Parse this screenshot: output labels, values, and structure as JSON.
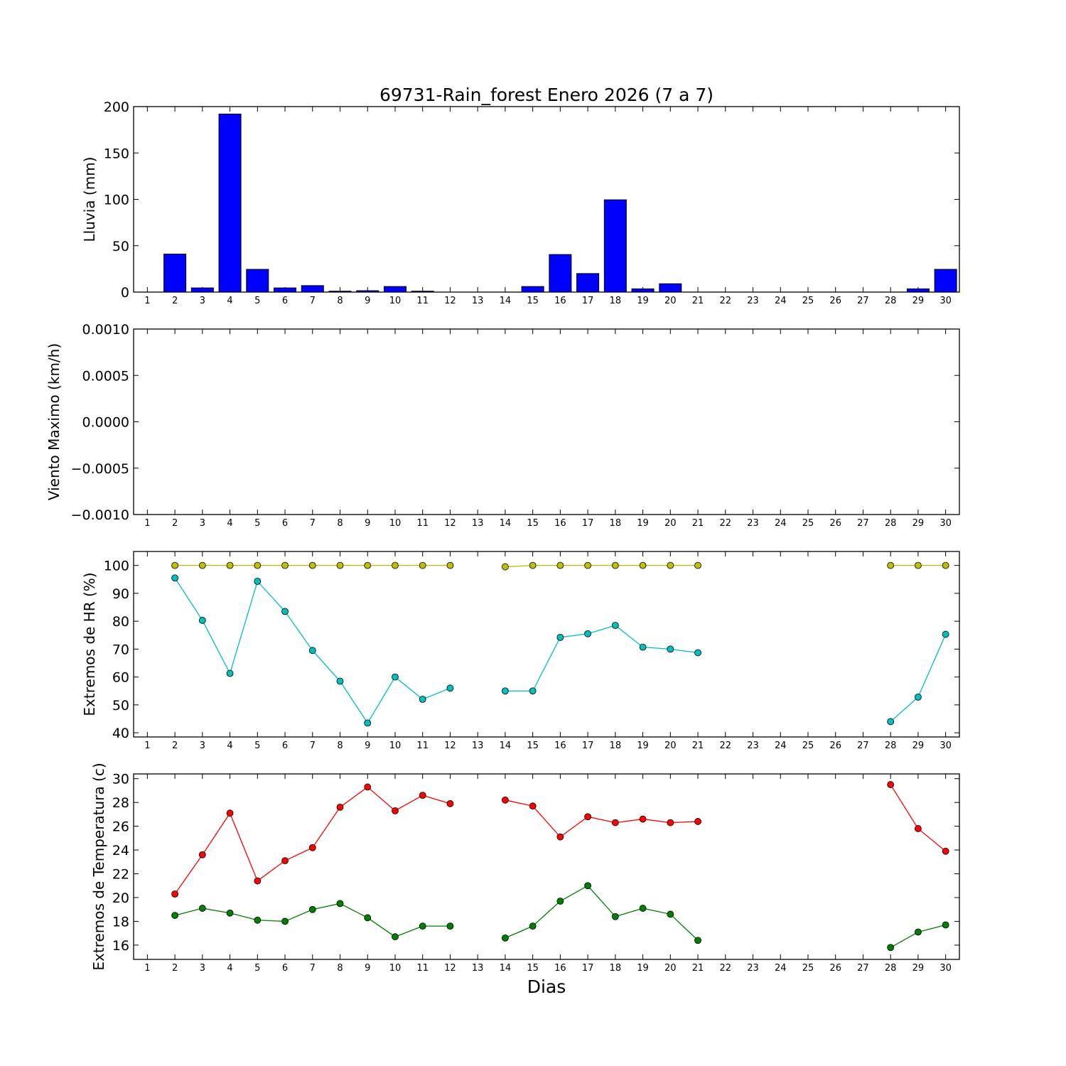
{
  "chart_data": {
    "title": "69731-Rain_forest Enero 2026  (7 a 7)",
    "xlabel": "Dias",
    "x_ticks": [
      "1",
      "2",
      "3",
      "4",
      "5",
      "6",
      "7",
      "8",
      "9",
      "10",
      "11",
      "12",
      "13",
      "14",
      "15",
      "16",
      "17",
      "18",
      "19",
      "20",
      "21",
      "22",
      "23",
      "24",
      "25",
      "26",
      "27",
      "28",
      "29",
      "30"
    ],
    "panels": [
      {
        "type": "bar",
        "ylabel": "Lluvia (mm)",
        "ylim": [
          0,
          200
        ],
        "yticks": [
          "0",
          "50",
          "100",
          "150",
          "200"
        ],
        "ytick_values": [
          0,
          50,
          100,
          150,
          200
        ],
        "bar_color": "#0000ff",
        "x": [
          1,
          2,
          3,
          4,
          5,
          6,
          7,
          8,
          9,
          10,
          11,
          12,
          13,
          14,
          15,
          16,
          17,
          18,
          19,
          20,
          21,
          22,
          23,
          24,
          25,
          26,
          27,
          28,
          29,
          30
        ],
        "values": [
          0,
          41,
          4.5,
          192,
          24.5,
          4.5,
          7,
          1,
          1.5,
          6,
          1,
          0,
          0,
          0,
          6,
          40.5,
          20,
          99.5,
          3.5,
          9,
          0,
          0,
          0,
          0,
          0,
          0,
          0,
          0,
          3.5,
          24.5
        ]
      },
      {
        "type": "line",
        "ylabel": "Viento Maximo (km/h)",
        "ylim": [
          -0.001,
          0.001
        ],
        "yticks": [
          "−0.0010",
          "−0.0005",
          "0.0000",
          "0.0005",
          "0.0010"
        ],
        "ytick_values": [
          -0.001,
          -0.0005,
          0,
          0.0005,
          0.001
        ],
        "series": []
      },
      {
        "type": "line",
        "ylabel": "Extremos de HR (%)",
        "ylim": [
          38.5,
          105
        ],
        "yticks": [
          "40",
          "50",
          "60",
          "70",
          "80",
          "90",
          "100"
        ],
        "ytick_values": [
          40,
          50,
          60,
          70,
          80,
          90,
          100
        ],
        "series": [
          {
            "color": "#bfbf00",
            "x": [
              2,
              3,
              4,
              5,
              6,
              7,
              8,
              9,
              10,
              11,
              12,
              14,
              15,
              16,
              17,
              18,
              19,
              20,
              21,
              28,
              29,
              30
            ],
            "values": [
              100,
              100,
              100,
              100,
              100,
              100,
              100,
              100,
              100,
              100,
              100,
              99.5,
              100,
              100,
              100,
              100,
              100,
              100,
              100,
              100,
              100,
              100
            ]
          },
          {
            "color": "#00bfbf",
            "x": [
              2,
              3,
              4,
              5,
              6,
              7,
              8,
              9,
              10,
              11,
              12,
              14,
              15,
              16,
              17,
              18,
              19,
              20,
              21,
              28,
              29,
              30
            ],
            "values": [
              95.5,
              80.3,
              61.3,
              94.3,
              83.5,
              69.5,
              58.5,
              43.5,
              60,
              52,
              56,
              55,
              55,
              74.2,
              75.5,
              78.5,
              70.7,
              70,
              68.7,
              44,
              52.8,
              75.3
            ]
          }
        ]
      },
      {
        "type": "line",
        "ylabel": "Extremos de Temperatura (c)",
        "ylim": [
          14.8,
          30.4
        ],
        "yticks": [
          "16",
          "18",
          "20",
          "22",
          "24",
          "26",
          "28",
          "30"
        ],
        "ytick_values": [
          16,
          18,
          20,
          22,
          24,
          26,
          28,
          30
        ],
        "series": [
          {
            "color": "#ff0000",
            "x": [
              2,
              3,
              4,
              5,
              6,
              7,
              8,
              9,
              10,
              11,
              12,
              14,
              15,
              16,
              17,
              18,
              19,
              20,
              21,
              28,
              29,
              30
            ],
            "values": [
              20.3,
              23.6,
              27.1,
              21.4,
              23.1,
              24.2,
              27.6,
              29.3,
              27.3,
              28.6,
              27.9,
              28.2,
              27.7,
              25.1,
              26.8,
              26.3,
              26.6,
              26.3,
              26.4,
              29.5,
              25.8,
              23.9
            ]
          },
          {
            "color": "#008000",
            "x": [
              2,
              3,
              4,
              5,
              6,
              7,
              8,
              9,
              10,
              11,
              12,
              14,
              15,
              16,
              17,
              18,
              19,
              20,
              21,
              28,
              29,
              30
            ],
            "values": [
              18.5,
              19.1,
              18.7,
              18.1,
              18,
              19,
              19.5,
              18.3,
              16.7,
              17.6,
              17.6,
              16.6,
              17.6,
              19.7,
              21,
              18.4,
              19.1,
              18.6,
              16.4,
              15.8,
              17.1,
              17.7
            ]
          }
        ]
      }
    ]
  }
}
